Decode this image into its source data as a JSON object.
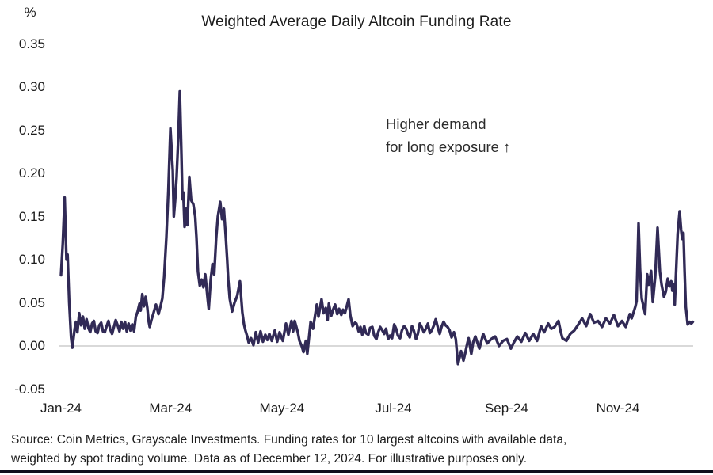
{
  "title": "Weighted Average Daily Altcoin Funding Rate",
  "y_axis": {
    "unit_label": "%",
    "ticks": [
      {
        "value": 0.35,
        "label": "0.35"
      },
      {
        "value": 0.3,
        "label": "0.30"
      },
      {
        "value": 0.25,
        "label": "0.25"
      },
      {
        "value": 0.2,
        "label": "0.20"
      },
      {
        "value": 0.15,
        "label": "0.15"
      },
      {
        "value": 0.1,
        "label": "0.10"
      },
      {
        "value": 0.05,
        "label": "0.05"
      },
      {
        "value": 0.0,
        "label": "0.00"
      },
      {
        "value": -0.05,
        "label": "-0.05"
      }
    ]
  },
  "x_axis": {
    "ticks": [
      {
        "day": 0,
        "label": "Jan-24"
      },
      {
        "day": 60,
        "label": "Mar-24"
      },
      {
        "day": 121,
        "label": "May-24"
      },
      {
        "day": 182,
        "label": "Jul-24"
      },
      {
        "day": 244,
        "label": "Sep-24"
      },
      {
        "day": 305,
        "label": "Nov-24"
      }
    ]
  },
  "annotation": {
    "line1": "Higher demand",
    "line2": "for long exposure ↑"
  },
  "source": {
    "line1": "Source: Coin Metrics, Grayscale Investments. Funding rates for 10 largest altcoins with available data,",
    "line2": "weighted by spot trading volume. Data as of December 12, 2024. For illustrative purposes only."
  },
  "chart_data": {
    "type": "line",
    "title": "Weighted Average Daily Altcoin Funding Rate",
    "series_name": "Weighted average daily altcoin funding rate (%)",
    "x_unit": "days since 2024-01-01 (data through 2024-12-12)",
    "x_range": [
      0,
      346
    ],
    "ylim": [
      -0.05,
      0.35
    ],
    "ylabel": "%",
    "grid": "zero-line-only",
    "legend": "none",
    "line_color": "#312a56",
    "zero_line_color": "#d9d9d9",
    "points": [
      [
        0,
        0.082
      ],
      [
        1,
        0.12
      ],
      [
        2,
        0.172
      ],
      [
        3,
        0.1
      ],
      [
        3.6,
        0.106
      ],
      [
        4.5,
        0.05
      ],
      [
        5.5,
        0.01
      ],
      [
        6.2,
        -0.002
      ],
      [
        7.5,
        0.02
      ],
      [
        8.2,
        0.028
      ],
      [
        9,
        0.016
      ],
      [
        10,
        0.038
      ],
      [
        11,
        0.024
      ],
      [
        12,
        0.034
      ],
      [
        13,
        0.02
      ],
      [
        14,
        0.031
      ],
      [
        15,
        0.021
      ],
      [
        16,
        0.016
      ],
      [
        17,
        0.026
      ],
      [
        18,
        0.029
      ],
      [
        19,
        0.017
      ],
      [
        20,
        0.015
      ],
      [
        21,
        0.024
      ],
      [
        22,
        0.027
      ],
      [
        23,
        0.017
      ],
      [
        24,
        0.016
      ],
      [
        25,
        0.023
      ],
      [
        26,
        0.029
      ],
      [
        27,
        0.019
      ],
      [
        28,
        0.014
      ],
      [
        29,
        0.022
      ],
      [
        30,
        0.03
      ],
      [
        31,
        0.024
      ],
      [
        32,
        0.017
      ],
      [
        33,
        0.028
      ],
      [
        34,
        0.02
      ],
      [
        35,
        0.028
      ],
      [
        36,
        0.017
      ],
      [
        37,
        0.026
      ],
      [
        38,
        0.018
      ],
      [
        39,
        0.025
      ],
      [
        40,
        0.017
      ],
      [
        41,
        0.034
      ],
      [
        42,
        0.04
      ],
      [
        43,
        0.049
      ],
      [
        43.6,
        0.041
      ],
      [
        44.5,
        0.06
      ],
      [
        45.4,
        0.046
      ],
      [
        46.4,
        0.057
      ],
      [
        47.3,
        0.044
      ],
      [
        48,
        0.029
      ],
      [
        48.6,
        0.022
      ],
      [
        49.5,
        0.03
      ],
      [
        50.5,
        0.037
      ],
      [
        52,
        0.048
      ],
      [
        53.4,
        0.037
      ],
      [
        54.5,
        0.046
      ],
      [
        55.5,
        0.055
      ],
      [
        56.5,
        0.08
      ],
      [
        57.7,
        0.126
      ],
      [
        58.8,
        0.18
      ],
      [
        59.9,
        0.252
      ],
      [
        60.8,
        0.219
      ],
      [
        61.2,
        0.203
      ],
      [
        61.8,
        0.15
      ],
      [
        62.5,
        0.169
      ],
      [
        63.3,
        0.195
      ],
      [
        64.2,
        0.24
      ],
      [
        65.1,
        0.295
      ],
      [
        66,
        0.22
      ],
      [
        66.5,
        0.17
      ],
      [
        67,
        0.178
      ],
      [
        67.7,
        0.138
      ],
      [
        68.5,
        0.159
      ],
      [
        69.2,
        0.14
      ],
      [
        70.3,
        0.196
      ],
      [
        71.3,
        0.169
      ],
      [
        72.5,
        0.164
      ],
      [
        73.5,
        0.15
      ],
      [
        74.2,
        0.126
      ],
      [
        75,
        0.086
      ],
      [
        76,
        0.07
      ],
      [
        77,
        0.077
      ],
      [
        78,
        0.068
      ],
      [
        79,
        0.083
      ],
      [
        80.3,
        0.055
      ],
      [
        80.9,
        0.043
      ],
      [
        82,
        0.077
      ],
      [
        83,
        0.095
      ],
      [
        83.9,
        0.083
      ],
      [
        85,
        0.125
      ],
      [
        85.9,
        0.15
      ],
      [
        87.2,
        0.167
      ],
      [
        88.2,
        0.147
      ],
      [
        89.2,
        0.159
      ],
      [
        90.2,
        0.128
      ],
      [
        91,
        0.101
      ],
      [
        91.6,
        0.077
      ],
      [
        92.4,
        0.055
      ],
      [
        93.7,
        0.04
      ],
      [
        95,
        0.05
      ],
      [
        96.5,
        0.058
      ],
      [
        98,
        0.075
      ],
      [
        99.3,
        0.039
      ],
      [
        100.2,
        0.025
      ],
      [
        101,
        0.018
      ],
      [
        102,
        0.011
      ],
      [
        102.8,
        0.004
      ],
      [
        104.1,
        0.009
      ],
      [
        105.4,
        0.001
      ],
      [
        106.7,
        0.016
      ],
      [
        108,
        0.004
      ],
      [
        109.3,
        0.017
      ],
      [
        110.6,
        0.005
      ],
      [
        111.9,
        0.013
      ],
      [
        113,
        0.007
      ],
      [
        114.1,
        0.014
      ],
      [
        115.4,
        0.006
      ],
      [
        117.1,
        0.018
      ],
      [
        118.4,
        0.005
      ],
      [
        119.7,
        0.016
      ],
      [
        121.5,
        0.006
      ],
      [
        123.2,
        0.026
      ],
      [
        124.5,
        0.013
      ],
      [
        126.2,
        0.029
      ],
      [
        127.1,
        0.017
      ],
      [
        128,
        0.029
      ],
      [
        129.7,
        0.016
      ],
      [
        130.6,
        0.006
      ],
      [
        131.8,
        0
      ],
      [
        132.8,
        -0.007
      ],
      [
        134.1,
        0.006
      ],
      [
        134.9,
        -0.009
      ],
      [
        136.7,
        0.028
      ],
      [
        138,
        0.02
      ],
      [
        140.1,
        0.048
      ],
      [
        141,
        0.034
      ],
      [
        142.7,
        0.054
      ],
      [
        143.8,
        0.038
      ],
      [
        145,
        0.044
      ],
      [
        146,
        0.03
      ],
      [
        146.7,
        0.049
      ],
      [
        148,
        0.035
      ],
      [
        149,
        0.042
      ],
      [
        150.1,
        0.048
      ],
      [
        151.3,
        0.037
      ],
      [
        152.3,
        0.043
      ],
      [
        153.5,
        0.036
      ],
      [
        154.5,
        0.042
      ],
      [
        155.5,
        0.038
      ],
      [
        156.5,
        0.046
      ],
      [
        157.5,
        0.054
      ],
      [
        158.5,
        0.035
      ],
      [
        159.7,
        0.023
      ],
      [
        161,
        0.027
      ],
      [
        161.8,
        0.026
      ],
      [
        163,
        0.017
      ],
      [
        164,
        0.022
      ],
      [
        165,
        0.013
      ],
      [
        166.1,
        0.023
      ],
      [
        167,
        0.015
      ],
      [
        168.3,
        0.013
      ],
      [
        169.3,
        0.021
      ],
      [
        170.5,
        0.022
      ],
      [
        171.5,
        0.012
      ],
      [
        172.7,
        0.008
      ],
      [
        173.7,
        0.016
      ],
      [
        174.8,
        0.022
      ],
      [
        176,
        0.018
      ],
      [
        177,
        0.014
      ],
      [
        178,
        0.02
      ],
      [
        179.2,
        0.008
      ],
      [
        180.2,
        0.012
      ],
      [
        181.3,
        0.009
      ],
      [
        182.5,
        0.025
      ],
      [
        183.5,
        0.02
      ],
      [
        184.5,
        0.012
      ],
      [
        185.7,
        0.009
      ],
      [
        186.7,
        0.018
      ],
      [
        187.9,
        0.023
      ],
      [
        189,
        0.02
      ],
      [
        190,
        0.014
      ],
      [
        191,
        0.01
      ],
      [
        192.2,
        0.023
      ],
      [
        193.2,
        0.018
      ],
      [
        194.4,
        0.008
      ],
      [
        195.4,
        0.014
      ],
      [
        196.5,
        0.026
      ],
      [
        197.5,
        0.022
      ],
      [
        198.7,
        0.016
      ],
      [
        199.8,
        0.02
      ],
      [
        200.9,
        0.026
      ],
      [
        202,
        0.015
      ],
      [
        203,
        0.018
      ],
      [
        204.2,
        0.024
      ],
      [
        205.2,
        0.031
      ],
      [
        206.3,
        0.022
      ],
      [
        207.4,
        0.014
      ],
      [
        208.4,
        0.022
      ],
      [
        209.5,
        0.028
      ],
      [
        210.6,
        0.024
      ],
      [
        211.7,
        0.022
      ],
      [
        212.8,
        0.018
      ],
      [
        213.9,
        0.01
      ],
      [
        215.2,
        0.016
      ],
      [
        216.2,
        0.008
      ],
      [
        217.4,
        -0.021
      ],
      [
        218.4,
        -0.012
      ],
      [
        219.1,
        -0.006
      ],
      [
        220.4,
        -0.017
      ],
      [
        221.4,
        -0.008
      ],
      [
        222.4,
        0.002
      ],
      [
        223.2,
        0.009
      ],
      [
        224.7,
        -0.009
      ],
      [
        225.7,
        0.004
      ],
      [
        226.9,
        0.011
      ],
      [
        229.1,
        -0.003
      ],
      [
        231.2,
        0.014
      ],
      [
        233.4,
        0.003
      ],
      [
        235.6,
        0.008
      ],
      [
        237.7,
        0.011
      ],
      [
        239.9,
        0
      ],
      [
        242.1,
        0.006
      ],
      [
        244.2,
        0.008
      ],
      [
        246.4,
        -0.003
      ],
      [
        248,
        0.004
      ],
      [
        249.9,
        0.011
      ],
      [
        252.1,
        0.005
      ],
      [
        254.3,
        0.015
      ],
      [
        256.4,
        0.006
      ],
      [
        258.6,
        0.014
      ],
      [
        260.7,
        0.006
      ],
      [
        262.9,
        0.023
      ],
      [
        264.6,
        0.016
      ],
      [
        266.8,
        0.026
      ],
      [
        268.5,
        0.02
      ],
      [
        270.3,
        0.022
      ],
      [
        272.4,
        0.029
      ],
      [
        273.5,
        0.018
      ],
      [
        274.6,
        0.009
      ],
      [
        276.8,
        0.006
      ],
      [
        278.9,
        0.014
      ],
      [
        281.1,
        0.018
      ],
      [
        283.3,
        0.025
      ],
      [
        285.4,
        0.032
      ],
      [
        287.6,
        0.023
      ],
      [
        289.8,
        0.037
      ],
      [
        291.9,
        0.027
      ],
      [
        294.1,
        0.029
      ],
      [
        296.3,
        0.022
      ],
      [
        298.4,
        0.032
      ],
      [
        300.6,
        0.026
      ],
      [
        302.8,
        0.036
      ],
      [
        305,
        0.023
      ],
      [
        307.2,
        0.029
      ],
      [
        309.3,
        0.022
      ],
      [
        311.5,
        0.037
      ],
      [
        312.5,
        0.032
      ],
      [
        313.7,
        0.04
      ],
      [
        314.6,
        0.046
      ],
      [
        315.2,
        0.052
      ],
      [
        316.3,
        0.142
      ],
      [
        317.1,
        0.089
      ],
      [
        318,
        0.055
      ],
      [
        319.3,
        0.043
      ],
      [
        319.9,
        0.037
      ],
      [
        321,
        0.083
      ],
      [
        321.9,
        0.071
      ],
      [
        323.2,
        0.087
      ],
      [
        324.1,
        0.051
      ],
      [
        325.4,
        0.08
      ],
      [
        326.7,
        0.137
      ],
      [
        328,
        0.086
      ],
      [
        328.9,
        0.071
      ],
      [
        330.2,
        0.057
      ],
      [
        331.2,
        0.063
      ],
      [
        332.3,
        0.078
      ],
      [
        333.2,
        0.069
      ],
      [
        334.2,
        0.075
      ],
      [
        334.8,
        0.064
      ],
      [
        335.4,
        0.072
      ],
      [
        336.1,
        0.048
      ],
      [
        337,
        0.095
      ],
      [
        337.7,
        0.13
      ],
      [
        338.8,
        0.156
      ],
      [
        339.6,
        0.135
      ],
      [
        340.2,
        0.124
      ],
      [
        340.9,
        0.131
      ],
      [
        341.5,
        0.088
      ],
      [
        342.2,
        0.045
      ],
      [
        343.2,
        0.025
      ],
      [
        344.3,
        0.028
      ],
      [
        345.2,
        0.026
      ],
      [
        346,
        0.028
      ]
    ]
  }
}
